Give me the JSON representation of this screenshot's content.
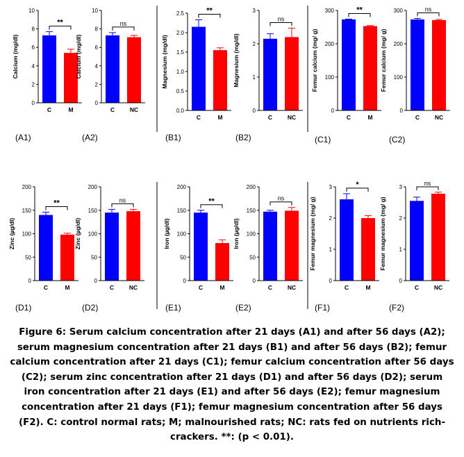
{
  "chart_data": [
    {
      "id": "A1",
      "type": "bar",
      "panel_label": "(A1)",
      "ylabel": "Calcium (mg/dl)",
      "categories": [
        "C",
        "M"
      ],
      "values": [
        7.3,
        5.4
      ],
      "errors": [
        0.4,
        0.4
      ],
      "colors": [
        "#0000ff",
        "#ff0000"
      ],
      "ylim": [
        0,
        10
      ],
      "yticks": [
        "0",
        "2",
        "4",
        "6",
        "8",
        "10"
      ],
      "significance": "**"
    },
    {
      "id": "A2",
      "type": "bar",
      "panel_label": "(A2)",
      "ylabel": "Calcium (mg/dl)",
      "categories": [
        "C",
        "NC"
      ],
      "values": [
        7.3,
        7.1
      ],
      "errors": [
        0.3,
        0.2
      ],
      "colors": [
        "#0000ff",
        "#ff0000"
      ],
      "ylim": [
        0,
        10
      ],
      "yticks": [
        "0",
        "2",
        "4",
        "6",
        "8",
        "10"
      ],
      "significance": "ns"
    },
    {
      "id": "B1",
      "type": "bar",
      "panel_label": "(B1)",
      "ylabel": "Magnesium (mg/dl)",
      "categories": [
        "C",
        "M"
      ],
      "values": [
        2.15,
        1.55
      ],
      "errors": [
        0.18,
        0.06
      ],
      "colors": [
        "#0000ff",
        "#ff0000"
      ],
      "ylim": [
        0,
        2.5
      ],
      "yticks": [
        "0.0",
        "0.5",
        "1.0",
        "1.5",
        "2.0",
        "2.5"
      ],
      "significance": "**"
    },
    {
      "id": "B2",
      "type": "bar",
      "panel_label": "(B2)",
      "ylabel": "Magnesium (mg/dl)",
      "categories": [
        "C",
        "NC"
      ],
      "values": [
        2.15,
        2.2
      ],
      "errors": [
        0.15,
        0.27
      ],
      "colors": [
        "#0000ff",
        "#ff0000"
      ],
      "ylim": [
        0,
        3
      ],
      "yticks": [
        "0",
        "1",
        "2",
        "3"
      ],
      "significance": "ns"
    },
    {
      "id": "C1",
      "type": "bar",
      "panel_label": "(C1)",
      "ylabel": "Femur calcium (mg/ g)",
      "categories": [
        "C",
        "M"
      ],
      "values": [
        273,
        253
      ],
      "errors": [
        1,
        1.5
      ],
      "colors": [
        "#0000ff",
        "#ff0000"
      ],
      "ylim": [
        0,
        300
      ],
      "yticks": [
        "0",
        "100",
        "200",
        "300"
      ],
      "significance": "**"
    },
    {
      "id": "C2",
      "type": "bar",
      "panel_label": "(C2)",
      "ylabel": "Femur calcium (mg/ g)",
      "categories": [
        "C",
        "NC"
      ],
      "values": [
        273,
        271
      ],
      "errors": [
        3,
        2
      ],
      "colors": [
        "#0000ff",
        "#ff0000"
      ],
      "ylim": [
        0,
        300
      ],
      "yticks": [
        "0",
        "100",
        "200",
        "300"
      ],
      "significance": "ns"
    },
    {
      "id": "D1",
      "type": "bar",
      "panel_label": "(D1)",
      "ylabel": "Zinc (µg/dl)",
      "categories": [
        "C",
        "M"
      ],
      "values": [
        140,
        98
      ],
      "errors": [
        6,
        3
      ],
      "colors": [
        "#0000ff",
        "#ff0000"
      ],
      "ylim": [
        0,
        200
      ],
      "yticks": [
        "0",
        "50",
        "100",
        "150",
        "200"
      ],
      "significance": "**"
    },
    {
      "id": "D2",
      "type": "bar",
      "panel_label": "(D2)",
      "ylabel": "Zinc (µg/dl)",
      "categories": [
        "C",
        "NC"
      ],
      "values": [
        145,
        148
      ],
      "errors": [
        7,
        4
      ],
      "colors": [
        "#0000ff",
        "#ff0000"
      ],
      "ylim": [
        0,
        200
      ],
      "yticks": [
        "0",
        "50",
        "100",
        "150",
        "200"
      ],
      "significance": "ns"
    },
    {
      "id": "E1",
      "type": "bar",
      "panel_label": "(E1)",
      "ylabel": "Iron (µg/dl)",
      "categories": [
        "C",
        "M"
      ],
      "values": [
        145,
        80
      ],
      "errors": [
        5,
        7
      ],
      "colors": [
        "#0000ff",
        "#ff0000"
      ],
      "ylim": [
        0,
        200
      ],
      "yticks": [
        "0",
        "50",
        "100",
        "150",
        "200"
      ],
      "significance": "**"
    },
    {
      "id": "E2",
      "type": "bar",
      "panel_label": "(E2)",
      "ylabel": "Iron (µg/dl)",
      "categories": [
        "C",
        "NC"
      ],
      "values": [
        147,
        149
      ],
      "errors": [
        3,
        7
      ],
      "colors": [
        "#0000ff",
        "#ff0000"
      ],
      "ylim": [
        0,
        200
      ],
      "yticks": [
        "0",
        "50",
        "100",
        "150",
        "200"
      ],
      "significance": "ns"
    },
    {
      "id": "F1",
      "type": "bar",
      "panel_label": "(F1)",
      "ylabel": "Femur magnesium (mg/ g)",
      "categories": [
        "C",
        "M"
      ],
      "values": [
        2.6,
        2.0
      ],
      "errors": [
        0.18,
        0.08
      ],
      "colors": [
        "#0000ff",
        "#ff0000"
      ],
      "ylim": [
        0,
        3
      ],
      "yticks": [
        "0",
        "1",
        "2",
        "3"
      ],
      "significance": "*"
    },
    {
      "id": "F2",
      "type": "bar",
      "panel_label": "(F2)",
      "ylabel": "Femur magnesium (mg/ g)",
      "categories": [
        "C",
        "NC"
      ],
      "values": [
        2.55,
        2.78
      ],
      "errors": [
        0.12,
        0.05
      ],
      "colors": [
        "#0000ff",
        "#ff0000"
      ],
      "ylim": [
        0,
        3
      ],
      "yticks": [
        "0",
        "1",
        "2",
        "3"
      ],
      "significance": "ns"
    }
  ],
  "caption": "Figure 6: Serum calcium concentration after 21 days (A1) and after 56 days (A2); serum magnesium concentration after 21 days (B1) and after 56 days (B2); femur calcium concentration after 21 days (C1); femur calcium concentration after 56 days (C2); serum zinc concentration after 21 days (D1) and after 56 days (D2); serum iron concentration after 21 days (E1) and after 56 days (E2); femur magnesium concentration after 21 days (F1); femur magnesium concentration after 56 days (F2). C: control normal rats; M; malnourished rats; NC: rats fed on nutrients rich-crackers. **: (p < 0.01)."
}
